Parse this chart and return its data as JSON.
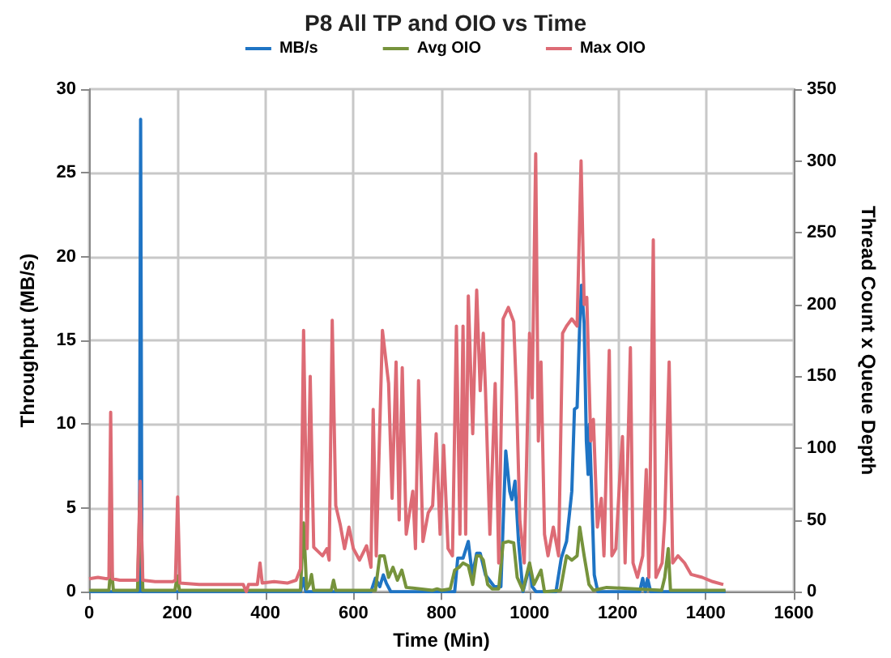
{
  "chart_data": {
    "type": "line",
    "title": "P8 All TP and OIO vs Time",
    "xlabel": "Time (Min)",
    "ylabel": "Throughput (MB/s)",
    "y2label": "Thread Count x Queue Depth",
    "xlim": [
      0,
      1600
    ],
    "xticks": [
      0,
      200,
      400,
      600,
      800,
      1000,
      1200,
      1400,
      1600
    ],
    "ylim": [
      0,
      30
    ],
    "yticks": [
      0,
      5,
      10,
      15,
      20,
      25,
      30
    ],
    "y2lim": [
      0,
      350
    ],
    "y2ticks": [
      0,
      50,
      100,
      150,
      200,
      250,
      300,
      350
    ],
    "grid": true,
    "legend": "top",
    "marker": "none",
    "line_style": "solid",
    "series": [
      {
        "name": "MB/s",
        "color": "#1f74c4",
        "x": [
          0,
          110,
          114,
          117,
          120,
          124,
          480,
          487,
          492,
          640,
          650,
          660,
          668,
          675,
          685,
          700,
          830,
          837,
          849,
          861,
          870,
          880,
          888,
          900,
          920,
          935,
          946,
          955,
          960,
          967,
          975,
          985,
          995,
          1000,
          1006,
          1015,
          1060,
          1072,
          1084,
          1096,
          1102,
          1108,
          1114,
          1118,
          1124,
          1129,
          1133,
          1136,
          1141,
          1147,
          1155,
          1250,
          1257,
          1263,
          1268,
          1275,
          1445
        ],
        "values": [
          0,
          0,
          0,
          28.2,
          0,
          0,
          0,
          0.8,
          0,
          0,
          0.8,
          0.3,
          1,
          0.5,
          0,
          0,
          0,
          2,
          2,
          3,
          1,
          2.3,
          2.3,
          1,
          0.3,
          0.3,
          8.4,
          6,
          5.5,
          6.6,
          3,
          0,
          1,
          1.5,
          0.3,
          0,
          0,
          2,
          3,
          6,
          10.9,
          11,
          16,
          18.3,
          16,
          9,
          7,
          10,
          6,
          1,
          0,
          0,
          0.8,
          0,
          0.8,
          0,
          0
        ]
      },
      {
        "name": "Avg OIO",
        "color": "#76933c",
        "axis": "y2",
        "x": [
          0,
          45,
          50,
          55,
          110,
          116,
          122,
          195,
          200,
          205,
          480,
          487,
          494,
          500,
          505,
          510,
          550,
          555,
          560,
          650,
          660,
          670,
          680,
          690,
          700,
          710,
          720,
          780,
          790,
          800,
          820,
          830,
          840,
          849,
          861,
          871,
          880,
          888,
          895,
          905,
          915,
          930,
          940,
          952,
          964,
          972,
          985,
          1000,
          1010,
          1026,
          1034,
          1070,
          1084,
          1096,
          1108,
          1114,
          1124,
          1135,
          1145,
          1175,
          1300,
          1307,
          1315,
          1320,
          1445
        ],
        "values": [
          1,
          1,
          20,
          1,
          1,
          72,
          1,
          1,
          11,
          1,
          1,
          48,
          2,
          5,
          12,
          1,
          1,
          8,
          1,
          1,
          25,
          25,
          10,
          17,
          8,
          15,
          3,
          1,
          2,
          1,
          2,
          15,
          17,
          20,
          18,
          5,
          25,
          25,
          22,
          5,
          2,
          2,
          34,
          35,
          34,
          10,
          1,
          20,
          5,
          15,
          0,
          1,
          25,
          22,
          25,
          45,
          25,
          5,
          1,
          3,
          1,
          10,
          30,
          1,
          1
        ]
      },
      {
        "name": "Max OIO",
        "color": "#dd6b75",
        "axis": "y2",
        "x": [
          0,
          20,
          40,
          45,
          49,
          53,
          70,
          100,
          110,
          116,
          122,
          150,
          190,
          196,
          201,
          206,
          250,
          300,
          350,
          357,
          362,
          382,
          388,
          393,
          420,
          450,
          470,
          480,
          487,
          495,
          502,
          510,
          520,
          530,
          540,
          545,
          552,
          560,
          570,
          580,
          590,
          600,
          614,
          630,
          640,
          645,
          652,
          666,
          680,
          688,
          697,
          704,
          711,
          720,
          735,
          741,
          748,
          758,
          770,
          780,
          788,
          797,
          805,
          815,
          825,
          834,
          842,
          849,
          855,
          861,
          871,
          880,
          888,
          895,
          900,
          910,
          922,
          930,
          940,
          952,
          964,
          970,
          978,
          988,
          1000,
          1006,
          1014,
          1020,
          1026,
          1034,
          1042,
          1054,
          1066,
          1075,
          1084,
          1096,
          1108,
          1117,
          1124,
          1130,
          1139,
          1145,
          1154,
          1163,
          1169,
          1181,
          1187,
          1196,
          1205,
          1211,
          1217,
          1229,
          1235,
          1245,
          1257,
          1265,
          1271,
          1281,
          1287,
          1301,
          1307,
          1317,
          1325,
          1337,
          1352,
          1367,
          1392,
          1416,
          1440
        ],
        "values": [
          9,
          10,
          9,
          10,
          125,
          9,
          8,
          8,
          8,
          77,
          8,
          7,
          7,
          8,
          66,
          6,
          5,
          5,
          5,
          0,
          5,
          5,
          20,
          6,
          7,
          6,
          8,
          16,
          182,
          30,
          150,
          31,
          28,
          25,
          30,
          22,
          189,
          60,
          47,
          30,
          45,
          30,
          22,
          32,
          17,
          127,
          25,
          182,
          145,
          65,
          160,
          50,
          156,
          40,
          70,
          30,
          147,
          35,
          55,
          60,
          110,
          40,
          102,
          30,
          25,
          185,
          40,
          185,
          40,
          206,
          110,
          210,
          140,
          180,
          140,
          40,
          145,
          20,
          190,
          198,
          188,
          140,
          50,
          20,
          180,
          135,
          305,
          105,
          160,
          40,
          25,
          45,
          25,
          180,
          185,
          190,
          185,
          300,
          200,
          205,
          105,
          120,
          45,
          65,
          25,
          168,
          25,
          30,
          80,
          108,
          20,
          170,
          20,
          10,
          25,
          85,
          10,
          245,
          10,
          20,
          50,
          160,
          20,
          25,
          20,
          12,
          10,
          7,
          5
        ]
      }
    ]
  }
}
